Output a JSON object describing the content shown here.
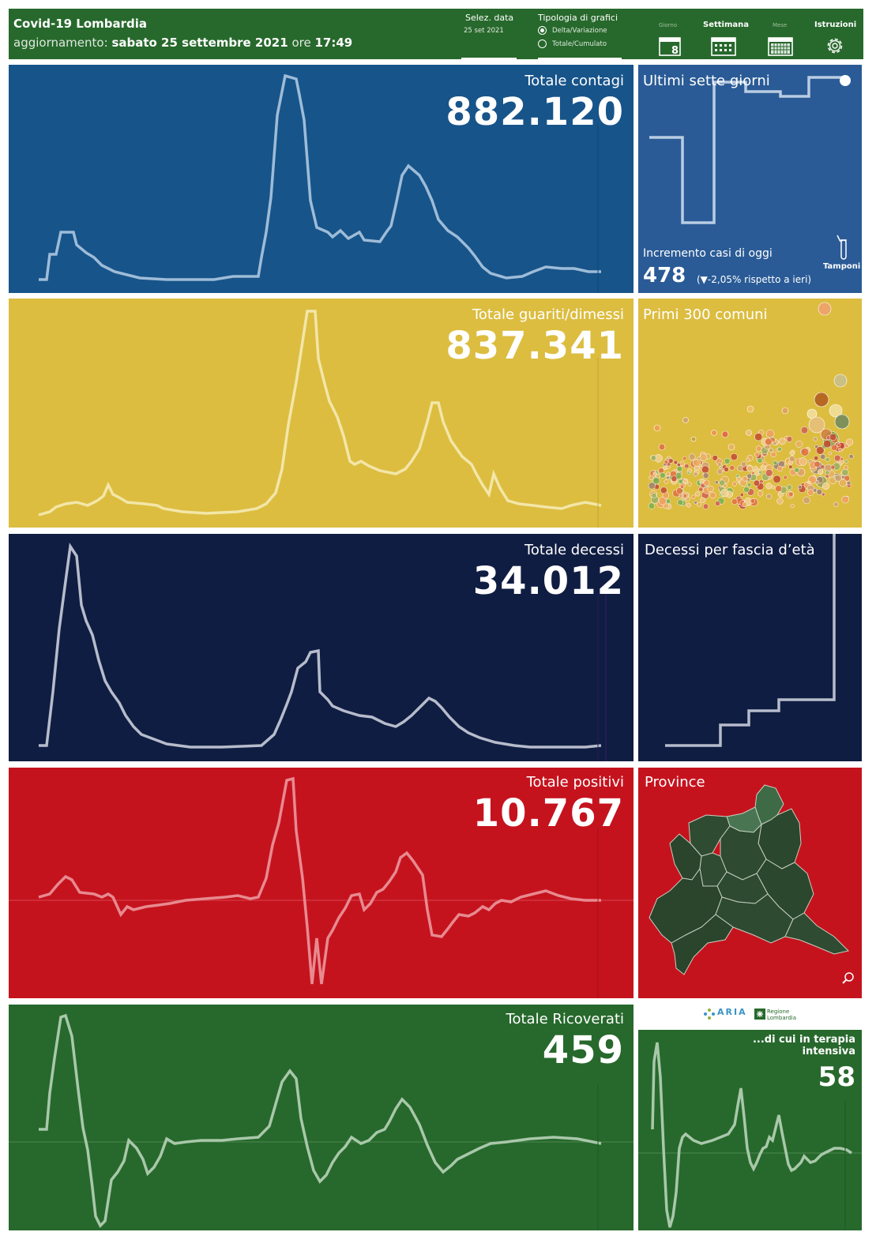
{
  "header": {
    "title": "Covid-19 Lombardia",
    "update_label": "aggiornamento:",
    "update_date": "sabato 25 settembre 2021",
    "update_time_label": "ore",
    "update_time": "17:49",
    "date_selector_label": "Selez. data",
    "date_selector_value": "25 set 2021",
    "chart_type_label": "Tipologia di grafici",
    "chart_type_options": [
      "Delta/Variazione",
      "Totale/Cumulato"
    ],
    "chart_type_selected": "Delta/Variazione",
    "view_buttons": [
      {
        "label": "Giorno",
        "icon": "calendar-day-icon",
        "day": "8",
        "active": false
      },
      {
        "label": "Settimana",
        "icon": "calendar-week-icon",
        "active": true
      },
      {
        "label": "Mese",
        "icon": "calendar-month-icon",
        "active": false
      }
    ],
    "instructions_label": "Istruzioni",
    "instructions_icon": "gear-icon"
  },
  "colors": {
    "header": "#27692c",
    "contagi": "#17548a",
    "contagi_side": "#2a5b96",
    "guariti": "#dcbd40",
    "decessi": "#101d42",
    "positivi": "#c5131e",
    "ricoverati": "#27692c"
  },
  "panels": {
    "contagi": {
      "title": "Totale contagi",
      "value": "882.120"
    },
    "guariti": {
      "title": "Totale guariti/dimessi",
      "value": "837.341"
    },
    "decessi": {
      "title": "Totale decessi",
      "value": "34.012"
    },
    "positivi": {
      "title": "Totale positivi",
      "value": "10.767"
    },
    "ricoverati": {
      "title": "Totale Ricoverati",
      "value": "459"
    }
  },
  "side_panels": {
    "ultimi": {
      "title": "Ultimi sette giorni",
      "increment_label": "Incremento casi di oggi",
      "increment_value": "478",
      "increment_change": "(▼-2,05% rispetto a  ieri)",
      "tamponi_label": "Tamponi",
      "tamponi_icon": "test-tube-icon"
    },
    "comuni": {
      "title": "Primi 300 comuni"
    },
    "eta": {
      "title": "Decessi per fascia d’età"
    },
    "province": {
      "title": "Province",
      "zoom_icon": "magnifier-icon"
    },
    "intensiva": {
      "title_line1": "...di cui in terapia",
      "title_line2": "intensiva",
      "value": "58"
    },
    "logos": {
      "aria": "ARIA",
      "regione": "Regione Lombardia"
    }
  }
}
